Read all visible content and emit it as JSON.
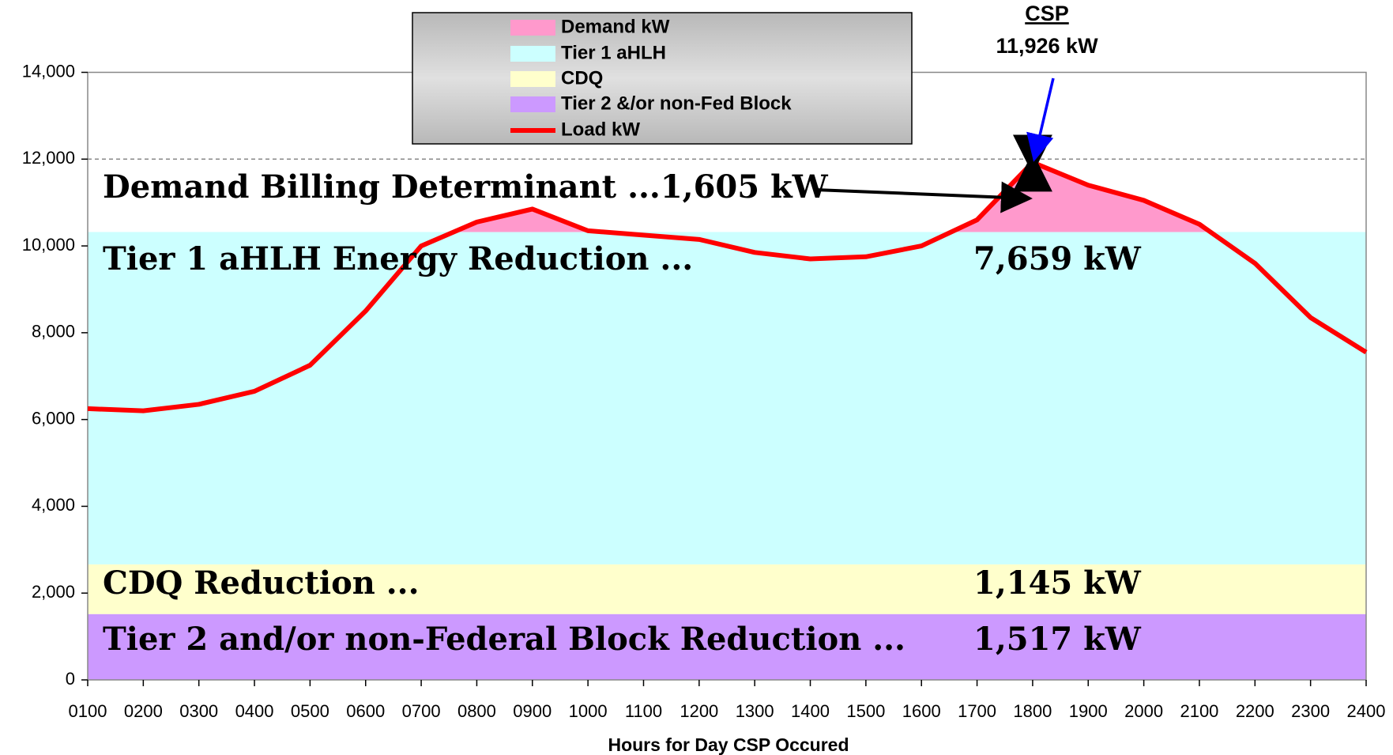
{
  "chart_data": {
    "type": "area",
    "x_label": "Hours for Day CSP Occured",
    "categories": [
      "0100",
      "0200",
      "0300",
      "0400",
      "0500",
      "0600",
      "0700",
      "0800",
      "0900",
      "1000",
      "1100",
      "1200",
      "1300",
      "1400",
      "1500",
      "1600",
      "1700",
      "1800",
      "1900",
      "2000",
      "2100",
      "2200",
      "2300",
      "2400"
    ],
    "ylim": [
      0,
      14000
    ],
    "yticks": [
      0,
      {
        "value": 2000,
        "label": "2,000"
      },
      {
        "value": 4000,
        "label": "4,000"
      },
      {
        "value": 6000,
        "label": "6,000"
      },
      {
        "value": 8000,
        "label": "8,000"
      },
      {
        "value": 10000,
        "label": "10,000"
      },
      {
        "value": 12000,
        "label": "12,000"
      },
      {
        "value": 14000,
        "label": "14,000"
      }
    ],
    "dashed_line": 12000,
    "bands": [
      {
        "name": "Demand kW",
        "color": "#ff99cc",
        "value": 1605,
        "label": "Demand Billing Determinant ...1,605 kW"
      },
      {
        "name": "Tier 1 aHLH",
        "color": "#ccffff",
        "value": 7659,
        "label": "Tier 1 aHLH Energy Reduction ...",
        "value_label": "7,659 kW"
      },
      {
        "name": "CDQ",
        "color": "#ffffcc",
        "value": 1145,
        "label": "CDQ Reduction ...",
        "value_label": "1,145 kW"
      },
      {
        "name": "Tier 2 &/or non-Fed Block",
        "color": "#cc99ff",
        "value": 1517,
        "label": "Tier 2 and/or non-Federal Block Reduction ...",
        "value_label": "1,517 kW"
      }
    ],
    "series": [
      {
        "name": "Load kW",
        "color": "#ff0000",
        "values": [
          6250,
          6200,
          6350,
          6650,
          7250,
          8500,
          10000,
          10550,
          10850,
          10350,
          10250,
          10150,
          9850,
          9700,
          9750,
          10000,
          10600,
          11926,
          11400,
          11050,
          10500,
          9600,
          8350,
          7550
        ]
      }
    ],
    "callout": {
      "title": "CSP",
      "value": 11926,
      "value_label": "11,926 kW"
    }
  }
}
